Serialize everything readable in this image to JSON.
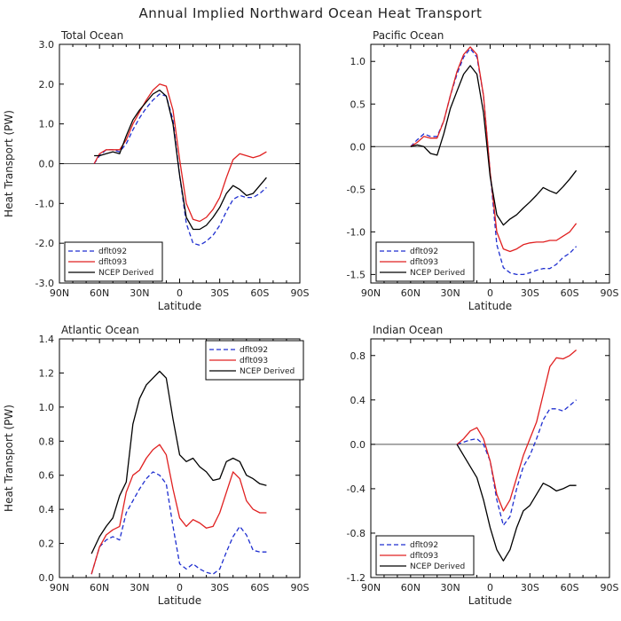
{
  "figure_title": "Annual Implied Northward Ocean Heat Transport",
  "colors": {
    "dflt092": "#1f2fd0",
    "dflt093": "#e02020",
    "ncep": "#000000",
    "frame": "#000000",
    "zero": "#555555"
  },
  "chart_data": [
    {
      "type": "line",
      "title": "Total Ocean",
      "xlabel": "Latitude",
      "ylabel": "Heat Transport (PW)",
      "xticks": [
        "90N",
        "60N",
        "30N",
        "0",
        "30S",
        "60S",
        "90S"
      ],
      "yticks": [
        "3.0",
        "2.0",
        "1.0",
        "0.0",
        "-1.0",
        "-2.0",
        "-3.0"
      ],
      "xlim": [
        -90,
        90
      ],
      "ylim": [
        -3,
        3
      ],
      "legend_position": "bottom-left",
      "series": [
        {
          "name": "dflt092",
          "style": "dashed",
          "x": [
            -64,
            -60,
            -55,
            -50,
            -45,
            -40,
            -35,
            -30,
            -25,
            -20,
            -15,
            -10,
            -5,
            0,
            5,
            10,
            15,
            20,
            25,
            30,
            35,
            40,
            45,
            50,
            55,
            60,
            65
          ],
          "y": [
            0.0,
            0.2,
            0.35,
            0.35,
            0.3,
            0.5,
            0.85,
            1.15,
            1.4,
            1.6,
            1.75,
            1.7,
            1.1,
            -0.3,
            -1.5,
            -2.0,
            -2.05,
            -1.95,
            -1.8,
            -1.55,
            -1.2,
            -0.9,
            -0.8,
            -0.85,
            -0.85,
            -0.75,
            -0.6
          ]
        },
        {
          "name": "dflt093",
          "style": "solid",
          "x": [
            -64,
            -60,
            -55,
            -50,
            -45,
            -40,
            -35,
            -30,
            -25,
            -20,
            -15,
            -10,
            -5,
            0,
            5,
            10,
            15,
            20,
            25,
            30,
            35,
            40,
            45,
            50,
            55,
            60,
            65
          ],
          "y": [
            0.0,
            0.25,
            0.35,
            0.35,
            0.35,
            0.6,
            1.0,
            1.3,
            1.6,
            1.85,
            2.0,
            1.95,
            1.35,
            0.1,
            -1.0,
            -1.4,
            -1.45,
            -1.35,
            -1.15,
            -0.85,
            -0.35,
            0.1,
            0.25,
            0.2,
            0.15,
            0.2,
            0.3
          ]
        },
        {
          "name": "NCEP Derived",
          "style": "solid",
          "x": [
            -64,
            -60,
            -55,
            -50,
            -45,
            -40,
            -35,
            -30,
            -25,
            -20,
            -15,
            -10,
            -5,
            0,
            5,
            10,
            15,
            20,
            25,
            30,
            35,
            40,
            45,
            50,
            55,
            60,
            65
          ],
          "y": [
            0.2,
            0.2,
            0.25,
            0.3,
            0.25,
            0.7,
            1.1,
            1.35,
            1.55,
            1.75,
            1.85,
            1.7,
            1.0,
            -0.3,
            -1.35,
            -1.65,
            -1.65,
            -1.55,
            -1.35,
            -1.1,
            -0.75,
            -0.55,
            -0.65,
            -0.8,
            -0.75,
            -0.55,
            -0.35
          ]
        }
      ],
      "legend": [
        "dflt092",
        "dflt093",
        "NCEP Derived"
      ]
    },
    {
      "type": "line",
      "title": "Pacific Ocean",
      "xlabel": "Latitude",
      "ylabel": "",
      "xticks": [
        "90N",
        "60N",
        "30N",
        "0",
        "30S",
        "60S",
        "90S"
      ],
      "yticks": [
        "1.0",
        "0.5",
        "0.0",
        "-0.5",
        "-1.0",
        "-1.5"
      ],
      "xlim": [
        -90,
        90
      ],
      "ylim": [
        -1.6,
        1.2
      ],
      "legend_position": "bottom-left",
      "series": [
        {
          "name": "dflt092",
          "style": "dashed",
          "x": [
            -60,
            -55,
            -50,
            -45,
            -40,
            -35,
            -30,
            -25,
            -20,
            -15,
            -10,
            -5,
            0,
            5,
            10,
            15,
            20,
            25,
            30,
            35,
            40,
            45,
            50,
            55,
            60,
            65
          ],
          "y": [
            0.0,
            0.08,
            0.15,
            0.12,
            0.12,
            0.3,
            0.6,
            0.85,
            1.05,
            1.15,
            1.05,
            0.6,
            -0.3,
            -1.15,
            -1.42,
            -1.48,
            -1.5,
            -1.5,
            -1.48,
            -1.45,
            -1.43,
            -1.43,
            -1.38,
            -1.3,
            -1.25,
            -1.17
          ]
        },
        {
          "name": "dflt093",
          "style": "solid",
          "x": [
            -60,
            -55,
            -50,
            -45,
            -40,
            -35,
            -30,
            -25,
            -20,
            -15,
            -10,
            -5,
            0,
            5,
            10,
            15,
            20,
            25,
            30,
            35,
            40,
            45,
            50,
            55,
            60,
            65
          ],
          "y": [
            0.0,
            0.05,
            0.12,
            0.1,
            0.1,
            0.3,
            0.6,
            0.88,
            1.08,
            1.17,
            1.08,
            0.6,
            -0.3,
            -1.0,
            -1.2,
            -1.23,
            -1.2,
            -1.15,
            -1.13,
            -1.12,
            -1.12,
            -1.1,
            -1.1,
            -1.05,
            -1.0,
            -0.9
          ]
        },
        {
          "name": "NCEP Derived",
          "style": "solid",
          "x": [
            -60,
            -55,
            -50,
            -45,
            -40,
            -35,
            -30,
            -25,
            -20,
            -15,
            -10,
            -5,
            0,
            5,
            10,
            15,
            20,
            25,
            30,
            35,
            40,
            45,
            50,
            55,
            60,
            65
          ],
          "y": [
            0.0,
            0.02,
            0.0,
            -0.08,
            -0.1,
            0.15,
            0.45,
            0.65,
            0.85,
            0.95,
            0.85,
            0.4,
            -0.35,
            -0.8,
            -0.92,
            -0.85,
            -0.8,
            -0.72,
            -0.65,
            -0.57,
            -0.48,
            -0.52,
            -0.55,
            -0.47,
            -0.38,
            -0.28
          ]
        }
      ],
      "legend": [
        "dflt092",
        "dflt093",
        "NCEP Derived"
      ]
    },
    {
      "type": "line",
      "title": "Atlantic Ocean",
      "xlabel": "Latitude",
      "ylabel": "Heat Transport (PW)",
      "xticks": [
        "90N",
        "60N",
        "30N",
        "0",
        "30S",
        "60S",
        "90S"
      ],
      "yticks": [
        "1.4",
        "1.2",
        "1.0",
        "0.8",
        "0.6",
        "0.4",
        "0.2",
        "0.0"
      ],
      "xlim": [
        -90,
        90
      ],
      "ylim": [
        0,
        1.4
      ],
      "legend_position": "top-right",
      "series": [
        {
          "name": "dflt092",
          "style": "dashed",
          "x": [
            -66,
            -60,
            -55,
            -50,
            -45,
            -40,
            -35,
            -30,
            -25,
            -20,
            -15,
            -10,
            -5,
            0,
            5,
            10,
            15,
            20,
            25,
            30,
            35,
            40,
            45,
            50,
            55,
            60,
            65
          ],
          "y": [
            0.02,
            0.18,
            0.22,
            0.24,
            0.22,
            0.38,
            0.45,
            0.52,
            0.58,
            0.62,
            0.6,
            0.55,
            0.3,
            0.08,
            0.05,
            0.08,
            0.05,
            0.03,
            0.02,
            0.05,
            0.15,
            0.24,
            0.3,
            0.25,
            0.16,
            0.15,
            0.15
          ]
        },
        {
          "name": "dflt093",
          "style": "solid",
          "x": [
            -66,
            -60,
            -55,
            -50,
            -45,
            -40,
            -35,
            -30,
            -25,
            -20,
            -15,
            -10,
            -5,
            0,
            5,
            10,
            15,
            20,
            25,
            30,
            35,
            40,
            45,
            50,
            55,
            60,
            65
          ],
          "y": [
            0.02,
            0.18,
            0.25,
            0.28,
            0.3,
            0.5,
            0.6,
            0.63,
            0.7,
            0.75,
            0.78,
            0.72,
            0.52,
            0.35,
            0.3,
            0.34,
            0.32,
            0.29,
            0.3,
            0.38,
            0.5,
            0.62,
            0.58,
            0.45,
            0.4,
            0.38,
            0.38
          ]
        },
        {
          "name": "NCEP Derived",
          "style": "solid",
          "x": [
            -66,
            -60,
            -55,
            -50,
            -45,
            -40,
            -35,
            -30,
            -25,
            -20,
            -15,
            -10,
            -5,
            0,
            5,
            10,
            15,
            20,
            25,
            30,
            35,
            40,
            45,
            50,
            55,
            60,
            65
          ],
          "y": [
            0.14,
            0.24,
            0.3,
            0.35,
            0.48,
            0.56,
            0.9,
            1.05,
            1.13,
            1.17,
            1.21,
            1.17,
            0.93,
            0.72,
            0.68,
            0.7,
            0.65,
            0.62,
            0.57,
            0.58,
            0.68,
            0.7,
            0.68,
            0.6,
            0.58,
            0.55,
            0.54
          ]
        }
      ],
      "legend": [
        "dflt092",
        "dflt093",
        "NCEP Derived"
      ]
    },
    {
      "type": "line",
      "title": "Indian Ocean",
      "xlabel": "Latitude",
      "ylabel": "",
      "xticks": [
        "90N",
        "60N",
        "30N",
        "0",
        "30S",
        "60S",
        "90S"
      ],
      "yticks": [
        "0.8",
        "0.4",
        "0.0",
        "-0.4",
        "-0.8",
        "-1.2"
      ],
      "xlim": [
        -90,
        90
      ],
      "ylim": [
        -1.2,
        0.95
      ],
      "legend_position": "bottom-left",
      "series": [
        {
          "name": "dflt092",
          "style": "dashed",
          "x": [
            -25,
            -20,
            -15,
            -10,
            -5,
            0,
            5,
            10,
            15,
            20,
            25,
            30,
            35,
            40,
            45,
            50,
            55,
            60,
            65
          ],
          "y": [
            0.0,
            0.02,
            0.04,
            0.05,
            0.0,
            -0.15,
            -0.5,
            -0.73,
            -0.65,
            -0.4,
            -0.2,
            -0.1,
            0.05,
            0.22,
            0.32,
            0.32,
            0.3,
            0.35,
            0.4
          ]
        },
        {
          "name": "dflt093",
          "style": "solid",
          "x": [
            -25,
            -20,
            -15,
            -10,
            -5,
            0,
            5,
            10,
            15,
            20,
            25,
            30,
            35,
            40,
            45,
            50,
            55,
            60,
            65
          ],
          "y": [
            0.0,
            0.05,
            0.12,
            0.15,
            0.05,
            -0.15,
            -0.45,
            -0.6,
            -0.5,
            -0.3,
            -0.1,
            0.05,
            0.2,
            0.45,
            0.7,
            0.78,
            0.77,
            0.8,
            0.85
          ]
        },
        {
          "name": "NCEP Derived",
          "style": "solid",
          "x": [
            -25,
            -20,
            -15,
            -10,
            -5,
            0,
            5,
            10,
            15,
            20,
            25,
            30,
            35,
            40,
            45,
            50,
            55,
            60,
            65
          ],
          "y": [
            0.0,
            -0.1,
            -0.2,
            -0.3,
            -0.5,
            -0.75,
            -0.95,
            -1.05,
            -0.95,
            -0.75,
            -0.6,
            -0.55,
            -0.45,
            -0.35,
            -0.38,
            -0.42,
            -0.4,
            -0.37,
            -0.37
          ]
        }
      ],
      "legend": [
        "dflt092",
        "dflt093",
        "NCEP Derived"
      ]
    }
  ]
}
